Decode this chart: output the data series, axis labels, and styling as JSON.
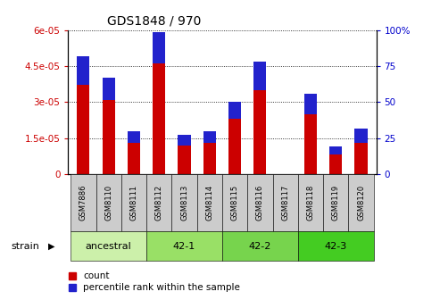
{
  "title": "GDS1848 / 970",
  "samples": [
    "GSM7886",
    "GSM8110",
    "GSM8111",
    "GSM8112",
    "GSM8113",
    "GSM8114",
    "GSM8115",
    "GSM8116",
    "GSM8117",
    "GSM8118",
    "GSM8119",
    "GSM8120"
  ],
  "count_values": [
    3.7e-05,
    3.1e-05,
    1.3e-05,
    4.6e-05,
    1.2e-05,
    1.3e-05,
    2.3e-05,
    3.5e-05,
    0.0,
    2.5e-05,
    8e-06,
    1.3e-05
  ],
  "percentile_values": [
    20,
    15,
    8,
    22,
    7,
    8,
    12,
    20,
    0,
    14,
    6,
    10
  ],
  "ylim_left": [
    0,
    6e-05
  ],
  "ylim_right": [
    0,
    100
  ],
  "yticks_left": [
    0,
    1.5e-05,
    3e-05,
    4.5e-05,
    6e-05
  ],
  "ytick_labels_left": [
    "0",
    "1.5e-05",
    "3e-05",
    "4.5e-05",
    "6e-05"
  ],
  "yticks_right": [
    0,
    25,
    50,
    75,
    100
  ],
  "ytick_labels_right": [
    "0",
    "25",
    "50",
    "75",
    "100%"
  ],
  "groups": [
    {
      "label": "ancestral",
      "start": 0,
      "end": 2,
      "color": "#ccf0aa"
    },
    {
      "label": "42-1",
      "start": 3,
      "end": 5,
      "color": "#99e066"
    },
    {
      "label": "42-2",
      "start": 6,
      "end": 8,
      "color": "#77d44d"
    },
    {
      "label": "42-3",
      "start": 9,
      "end": 11,
      "color": "#44cc22"
    }
  ],
  "bar_color_red": "#cc0000",
  "bar_color_blue": "#2222cc",
  "bar_width": 0.5,
  "bg_color": "#ffffff",
  "plot_bg_color": "#ffffff",
  "tick_label_color_left": "#cc0000",
  "tick_label_color_right": "#0000cc",
  "strain_label": "strain",
  "legend_count": "count",
  "legend_percentile": "percentile rank within the sample",
  "title_fontsize": 10,
  "axis_fontsize": 7.5,
  "legend_fontsize": 7.5,
  "sample_fontsize": 6.0,
  "group_fontsize": 8.0
}
